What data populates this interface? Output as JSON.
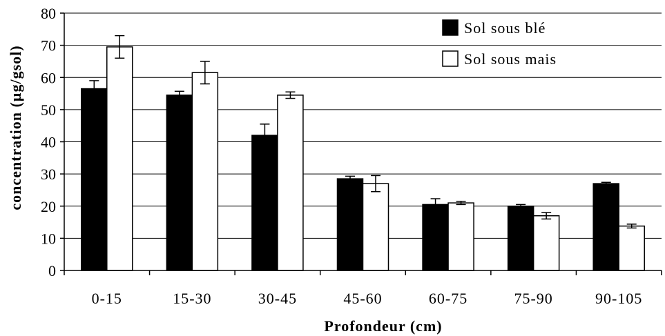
{
  "chart_data": {
    "type": "bar",
    "xlabel": "Profondeur (cm)",
    "ylabel": "concentration (µg/gsol)",
    "ylim": [
      0,
      80
    ],
    "yticks": [
      0,
      10,
      20,
      30,
      40,
      50,
      60,
      70,
      80
    ],
    "grid": true,
    "legend_position": "top-right",
    "categories": [
      "0-15",
      "15-30",
      "30-45",
      "45-60",
      "60-75",
      "75-90",
      "90-105"
    ],
    "series": [
      {
        "name": "Sol sous blé",
        "color": "#000000",
        "values": [
          56.5,
          54.5,
          42,
          28.5,
          20.5,
          20,
          27
        ],
        "error": [
          2.5,
          1.2,
          3.5,
          0.8,
          1.8,
          0.5,
          0.4
        ]
      },
      {
        "name": "Sol sous mais",
        "color": "#ffffff",
        "values": [
          69.5,
          61.5,
          54.5,
          27,
          21,
          17,
          13.8
        ],
        "error": [
          3.5,
          3.5,
          1.0,
          2.5,
          0.5,
          1.0,
          0.6
        ]
      }
    ]
  }
}
